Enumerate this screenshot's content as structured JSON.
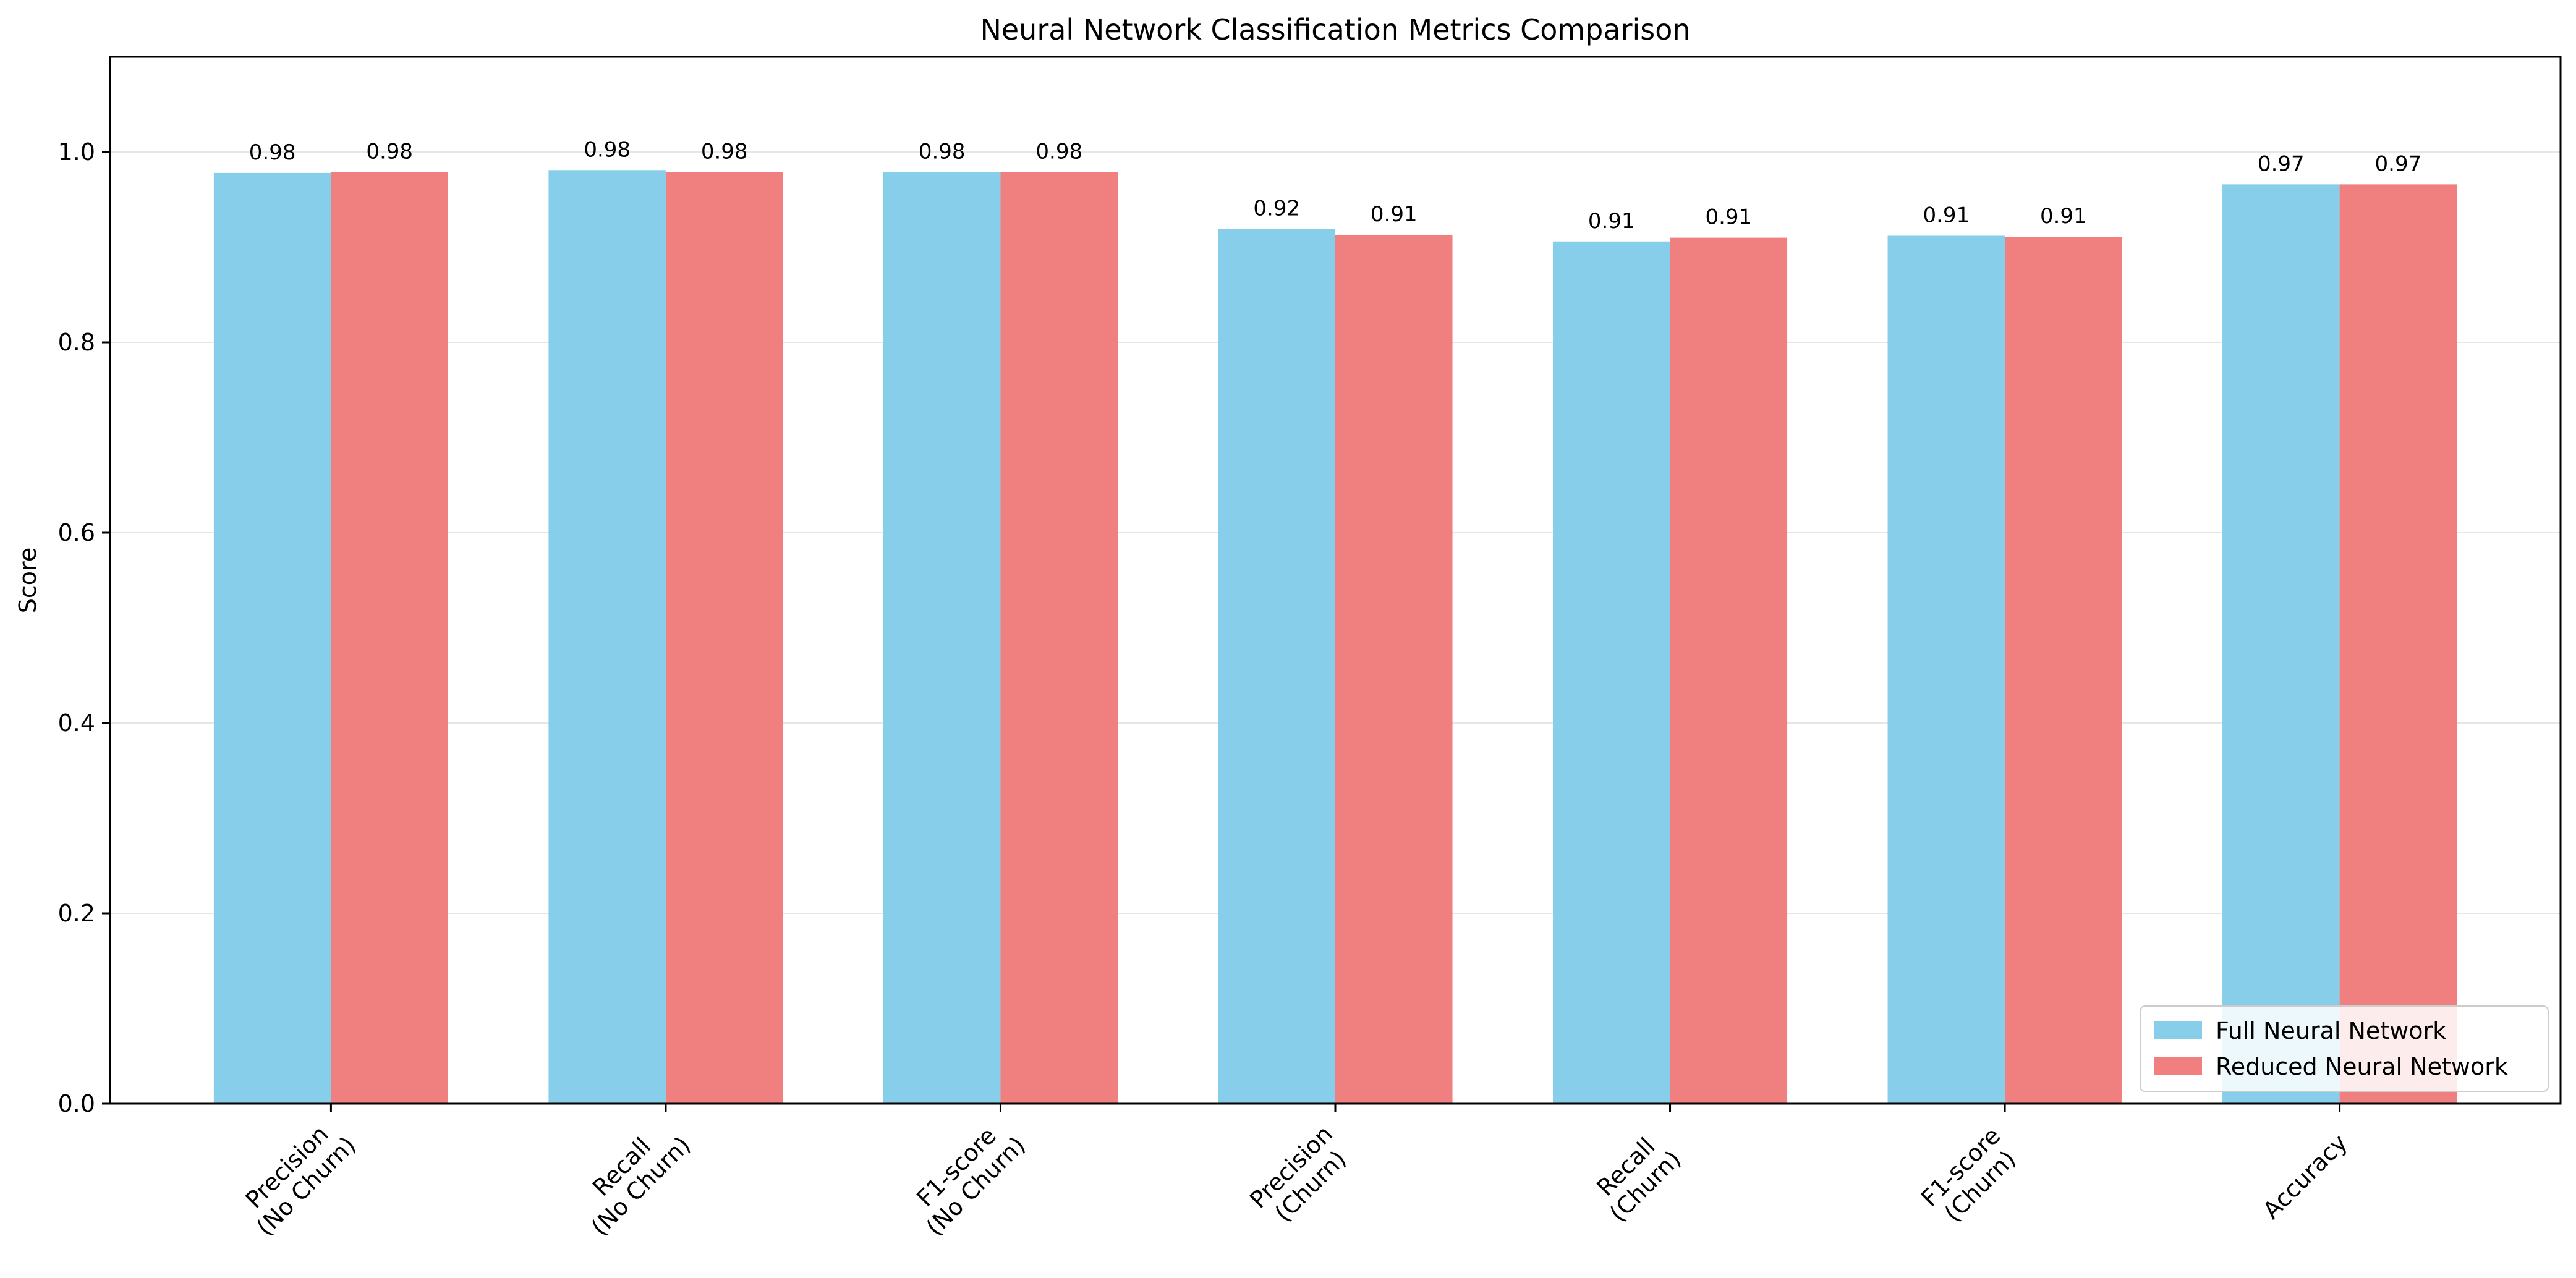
{
  "chart_data": {
    "type": "bar",
    "title": "Neural Network Classification Metrics Comparison",
    "xlabel": "",
    "ylabel": "Score",
    "ylim": [
      0,
      1.1
    ],
    "yticks": [
      0.0,
      0.2,
      0.4,
      0.6,
      0.8,
      1.0
    ],
    "ytick_labels": [
      "0.0",
      "0.2",
      "0.4",
      "0.6",
      "0.8",
      "1.0"
    ],
    "grid": "y",
    "legend_position": "lower-right",
    "categories": [
      "Precision\n(No Churn)",
      "Recall\n(No Churn)",
      "F1-score\n(No Churn)",
      "Precision\n(Churn)",
      "Recall\n(Churn)",
      "F1-score\n(Churn)",
      "Accuracy"
    ],
    "series": [
      {
        "name": "Full Neural Network",
        "color": "#87ceeb",
        "values": [
          0.978,
          0.981,
          0.979,
          0.919,
          0.906,
          0.912,
          0.966
        ],
        "labels": [
          "0.98",
          "0.98",
          "0.98",
          "0.92",
          "0.91",
          "0.91",
          "0.97"
        ]
      },
      {
        "name": "Reduced Neural Network",
        "color": "#f08080",
        "values": [
          0.979,
          0.979,
          0.979,
          0.913,
          0.91,
          0.911,
          0.966
        ],
        "labels": [
          "0.98",
          "0.98",
          "0.98",
          "0.91",
          "0.91",
          "0.91",
          "0.97"
        ]
      }
    ]
  }
}
